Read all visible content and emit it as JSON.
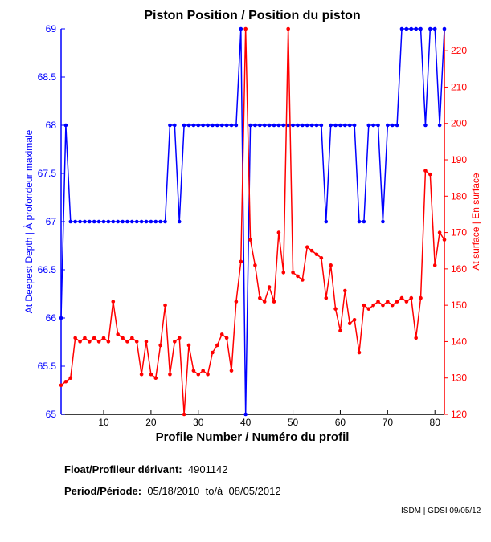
{
  "chart_data": {
    "type": "line",
    "title": "Piston Position / Position du piston",
    "xlabel": "Profile Number / Numéro du profil",
    "ylabel_left": "At Deepest Depth | À profondeur maximale",
    "ylabel_right": "At surface | En surface",
    "xlim": [
      1,
      82
    ],
    "ylim_left": [
      65,
      69
    ],
    "ylim_right": [
      120,
      226
    ],
    "x_ticks": [
      10,
      20,
      30,
      40,
      50,
      60,
      70,
      80
    ],
    "y_ticks_left": [
      "65",
      "65.5",
      "66",
      "66.5",
      "67",
      "67.5",
      "68",
      "68.5",
      "69"
    ],
    "y_ticks_right": [
      120,
      130,
      140,
      150,
      160,
      170,
      180,
      190,
      200,
      210,
      220
    ],
    "grid": false,
    "series": [
      {
        "name": "At Deepest Depth",
        "axis": "left",
        "color": "#0000ff",
        "values": [
          66,
          68,
          67,
          67,
          67,
          67,
          67,
          67,
          67,
          67,
          67,
          67,
          67,
          67,
          67,
          67,
          67,
          67,
          67,
          67,
          67,
          67,
          67,
          68,
          68,
          67,
          68,
          68,
          68,
          68,
          68,
          68,
          68,
          68,
          68,
          68,
          68,
          68,
          69,
          65,
          68,
          68,
          68,
          68,
          68,
          68,
          68,
          68,
          68,
          68,
          68,
          68,
          68,
          68,
          68,
          68,
          67,
          68,
          68,
          68,
          68,
          68,
          68,
          67,
          67,
          68,
          68,
          68,
          67,
          68,
          68,
          68,
          69,
          69,
          69,
          69,
          69,
          68,
          69,
          69,
          68,
          69
        ]
      },
      {
        "name": "At surface",
        "axis": "right",
        "color": "#ff0000",
        "values": [
          128,
          129,
          130,
          141,
          140,
          141,
          140,
          141,
          140,
          141,
          140,
          151,
          142,
          141,
          140,
          141,
          140,
          131,
          140,
          131,
          130,
          139,
          150,
          131,
          140,
          141,
          120,
          139,
          132,
          131,
          132,
          131,
          137,
          139,
          142,
          141,
          132,
          151,
          162,
          226,
          168,
          161,
          152,
          151,
          155,
          151,
          170,
          159,
          226,
          159,
          158,
          157,
          166,
          165,
          164,
          163,
          152,
          161,
          149,
          143,
          154,
          145,
          146,
          137,
          150,
          149,
          150,
          151,
          150,
          151,
          150,
          151,
          152,
          151,
          152,
          141,
          152,
          187,
          186,
          161,
          170,
          168
        ]
      }
    ]
  },
  "info": {
    "float_label": "Float/Profileur dérivant:",
    "float_value": "4901142",
    "period_label": "Period/Période:",
    "period_value": "05/18/2010  to/à  08/05/2012",
    "credit": "ISDM | GDSI 09/05/12"
  }
}
